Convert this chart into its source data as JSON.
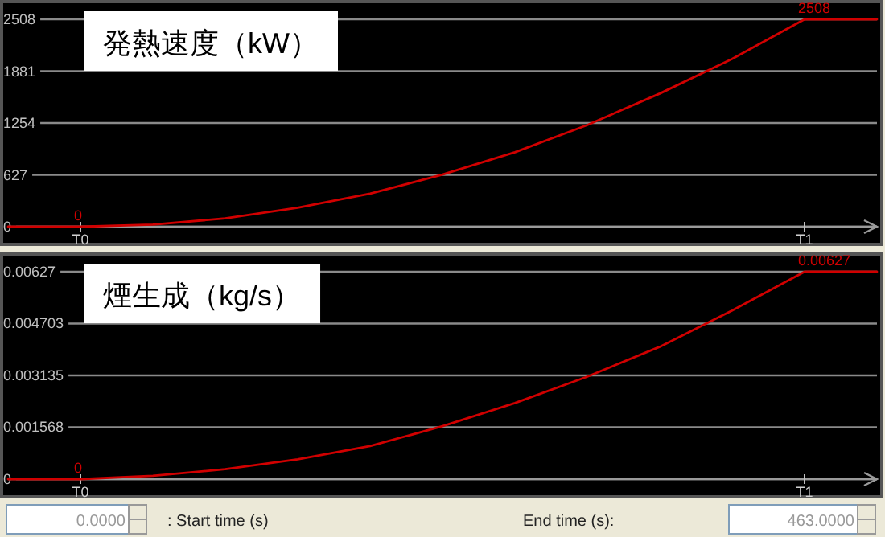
{
  "chart_data": [
    {
      "type": "line",
      "title": "発熱速度（kW）",
      "categories": [
        null,
        "T0",
        null,
        null,
        null,
        null,
        null,
        null,
        null,
        null,
        null,
        "T1",
        null
      ],
      "series": [
        {
          "color": "#d00000",
          "values": [
            0,
            0,
            25,
            100,
            230,
            400,
            630,
            900,
            1230,
            1610,
            2030,
            2508,
            2508
          ]
        }
      ],
      "ylim": [
        0,
        2508
      ],
      "yticks": [
        0,
        627,
        1254,
        1881,
        2508
      ],
      "grid": "y",
      "annotations": [
        {
          "text": "0",
          "x": "T0",
          "y": 0
        },
        {
          "text": "2508",
          "x": "T1",
          "y": 2508
        }
      ]
    },
    {
      "type": "line",
      "title": "煙生成（kg/s）",
      "categories": [
        null,
        "T0",
        null,
        null,
        null,
        null,
        null,
        null,
        null,
        null,
        null,
        "T1",
        null
      ],
      "series": [
        {
          "color": "#d00000",
          "values": [
            0,
            0,
            0.0001,
            0.0003,
            0.0006,
            0.001,
            0.0016,
            0.0023,
            0.0031,
            0.004,
            0.0051,
            0.00627,
            0.00627
          ]
        }
      ],
      "ylim": [
        0,
        0.00627
      ],
      "yticks": [
        0,
        0.001568,
        0.003135,
        0.004703,
        0.00627
      ],
      "grid": "y",
      "annotations": [
        {
          "text": "0",
          "x": "T0",
          "y": 0
        },
        {
          "text": "0.00627",
          "x": "T1",
          "y": 0.00627
        },
        "0.0000",
        ": Start time (s)",
        "End time (s):",
        "463.0000"
      ]
    }
  ]
}
